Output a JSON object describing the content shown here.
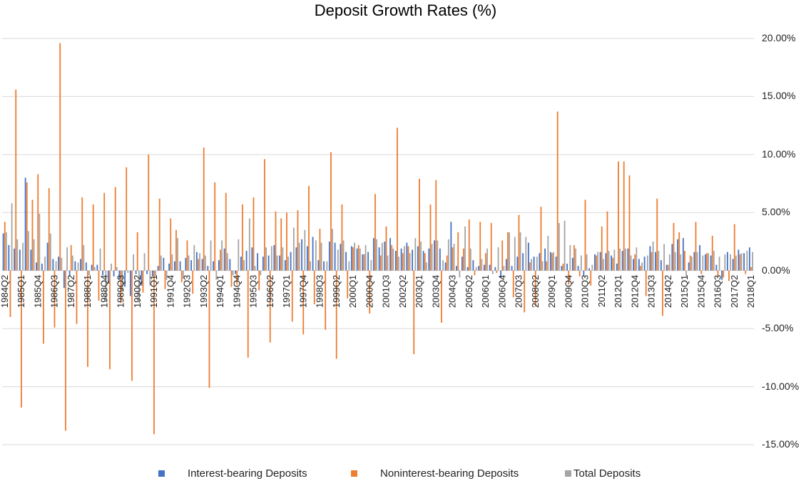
{
  "chart_data": {
    "type": "bar",
    "title": "Deposit Growth Rates (%)",
    "xlabel": "",
    "ylabel": "",
    "ylim": [
      -15,
      20
    ],
    "yticks": [
      "20.00%",
      "15.00%",
      "10.00%",
      "5.00%",
      "0.00%",
      "-5.00%",
      "-10.00%",
      "-15.00%"
    ],
    "y_axis_position": "right",
    "grid": true,
    "legend_position": "bottom",
    "start_quarter": "1984Q2",
    "end_quarter": "2018Q1",
    "tick_labels": [
      "1984Q2",
      "1985Q1",
      "1985Q4",
      "1986Q3",
      "1987Q2",
      "1988Q1",
      "1988Q4",
      "1989Q3",
      "1990Q2",
      "1991Q1",
      "1991Q4",
      "1992Q3",
      "1993Q2",
      "1994Q1",
      "1994Q4",
      "1995Q3",
      "1996Q2",
      "1997Q1",
      "1997Q4",
      "1998Q3",
      "1999Q2",
      "2000Q1",
      "2000Q4",
      "2001Q3",
      "2002Q2",
      "2003Q1",
      "2003Q4",
      "2004Q3",
      "2005Q2",
      "2006Q1",
      "2006Q4",
      "2007Q3",
      "2008Q2",
      "2009Q1",
      "2009Q4",
      "2010Q3",
      "2011Q2",
      "2012Q1",
      "2012Q4",
      "2013Q3",
      "2014Q2",
      "2015Q1",
      "2015Q4",
      "2016Q3",
      "2017Q2",
      "2018Q1"
    ],
    "series": [
      {
        "name": "Interest-bearing Deposits",
        "color": "#4472C4",
        "values": [
          3.2,
          2.2,
          1.9,
          1.8,
          8.0,
          1.8,
          0.7,
          0.6,
          2.4,
          1.0,
          1.2,
          -1.5,
          -0.5,
          0.8,
          1.0,
          0.7,
          0.5,
          0.5,
          -0.4,
          -1.1,
          -0.5,
          -0.8,
          -1.4,
          -2.2,
          -0.3,
          -1.3,
          -0.3,
          -0.5,
          0.4,
          1.1,
          0.6,
          0.8,
          0.8,
          1.1,
          0.9,
          1.6,
          1.0,
          0.4,
          0.8,
          0.9,
          1.9,
          1.0,
          -0.3,
          1.2,
          1.7,
          2.0,
          1.5,
          1.2,
          1.3,
          2.2,
          1.3,
          0.9,
          1.6,
          2.0,
          2.7,
          2.1,
          2.9,
          0.9,
          0.8,
          2.5,
          2.4,
          2.3,
          1.6,
          2.1,
          1.9,
          1.4,
          1.6,
          2.8,
          2.0,
          2.5,
          2.8,
          1.7,
          1.9,
          2.4,
          1.8,
          2.1,
          1.7,
          1.9,
          2.6,
          1.9,
          0.7,
          4.2,
          0.4,
          1.2,
          0.3,
          0.9,
          0.4,
          0.5,
          0.5,
          0.3,
          -0.6,
          1.0,
          0.4,
          1.2,
          1.5,
          2.4,
          1.2,
          1.5,
          1.9,
          1.6,
          1.2,
          0.4,
          0.6,
          1.1,
          0.4,
          -0.5,
          0.2,
          1.4,
          1.6,
          1.5,
          1.3,
          0.6,
          1.7,
          1.9,
          1.0,
          1.0,
          1.2,
          2.1,
          1.6,
          0.9,
          0.5,
          2.3,
          2.7,
          2.8,
          0.7,
          1.6,
          2.2,
          1.4,
          1.3,
          0.5,
          -0.8,
          1.6,
          1.0,
          1.8,
          1.5,
          2.0
        ]
      },
      {
        "name": "Noninterest-bearing Deposits",
        "color": "#ED7D31",
        "values": [
          4.2,
          -4.0,
          15.6,
          -11.8,
          7.6,
          6.1,
          8.3,
          -6.3,
          7.1,
          -4.9,
          19.6,
          -13.8,
          2.2,
          -4.6,
          6.3,
          -8.3,
          5.7,
          -2.6,
          6.7,
          -8.5,
          7.2,
          -2.8,
          8.9,
          -9.5,
          3.3,
          -1.9,
          10.0,
          -14.1,
          6.2,
          -1.6,
          4.5,
          3.5,
          -1.0,
          2.6,
          -2.0,
          1.0,
          10.6,
          -10.1,
          7.6,
          1.8,
          6.7,
          -1.4,
          -1.2,
          5.7,
          -7.5,
          6.3,
          -1.7,
          9.6,
          -6.2,
          5.1,
          4.5,
          5.0,
          -4.4,
          5.2,
          -5.5,
          7.3,
          -2.9,
          3.6,
          -5.1,
          10.2,
          -7.6,
          5.7,
          -2.4,
          2.0,
          2.2,
          1.4,
          -3.7,
          6.6,
          1.3,
          3.8,
          2.2,
          12.3,
          1.5,
          2.1,
          -7.2,
          7.9,
          1.5,
          5.7,
          7.8,
          -4.5,
          1.3,
          2.0,
          3.3,
          1.9,
          4.4,
          -0.4,
          4.2,
          1.5,
          4.1,
          -0.2,
          2.6,
          3.3,
          -2.3,
          4.8,
          -3.6,
          0.7,
          -3.1,
          5.5,
          0.8,
          1.5,
          13.7,
          0.6,
          -1.2,
          2.2,
          -0.5,
          6.1,
          -1.3,
          1.3,
          3.8,
          5.1,
          1.1,
          9.4,
          9.4,
          8.2,
          1.4,
          0.4,
          -2.2,
          1.6,
          6.2,
          -3.9,
          0.5,
          4.1,
          3.3,
          1.7,
          1.3,
          4.2,
          -0.3,
          1.5,
          3.0,
          -0.5,
          -0.6,
          -0.9,
          4.0,
          1.4,
          -0.3,
          0.3
        ]
      },
      {
        "name": "Total Deposits",
        "color": "#A5A5A5",
        "values": [
          3.3,
          5.8,
          2.7,
          2.4,
          3.4,
          2.7,
          4.9,
          1.2,
          3.2,
          0.8,
          1.1,
          2.0,
          1.3,
          0.7,
          2.2,
          -0.4,
          0.3,
          1.9,
          -2.7,
          0.6,
          0.3,
          -1.8,
          -0.2,
          1.4,
          -2.8,
          1.5,
          -1.3,
          -0.5,
          1.3,
          -0.8,
          1.4,
          2.8,
          -0.7,
          1.3,
          2.2,
          1.5,
          1.3,
          2.6,
          -0.8,
          2.6,
          1.5,
          -0.4,
          2.7,
          0.9,
          4.5,
          0.4,
          -0.4,
          2.0,
          2.1,
          1.3,
          2.0,
          1.2,
          3.7,
          2.4,
          3.5,
          0.8,
          2.6,
          2.4,
          0.8,
          3.6,
          1.8,
          2.6,
          0.8,
          2.4,
          1.9,
          2.2,
          0.9,
          2.7,
          2.4,
          1.3,
          1.9,
          1.2,
          2.1,
          1.5,
          2.8,
          2.5,
          0.7,
          2.3,
          2.6,
          0.9,
          2.7,
          2.3,
          -0.6,
          3.8,
          1.9,
          0.3,
          1.0,
          1.9,
          -0.3,
          2.0,
          0.4,
          3.3,
          2.9,
          3.3,
          2.9,
          1.0,
          1.2,
          0.8,
          3.0,
          1.6,
          4.1,
          4.3,
          2.2,
          1.9,
          1.3,
          1.4,
          0.5,
          1.6,
          1.0,
          1.7,
          1.8,
          1.9,
          1.9,
          1.3,
          2.0,
          0.7,
          1.3,
          2.5,
          1.7,
          2.3,
          1.4,
          1.6,
          1.4,
          -0.5,
          1.2,
          1.6,
          1.3,
          1.5,
          1.7,
          1.2,
          1.4,
          1.4,
          1.3,
          1.5,
          1.7,
          1.6
        ]
      }
    ]
  },
  "legend": {
    "items": [
      {
        "label": "Interest-bearing Deposits",
        "color": "#4472C4"
      },
      {
        "label": "Noninterest-bearing Deposits",
        "color": "#ED7D31"
      },
      {
        "label": "Total Deposits",
        "color": "#A5A5A5"
      }
    ]
  }
}
